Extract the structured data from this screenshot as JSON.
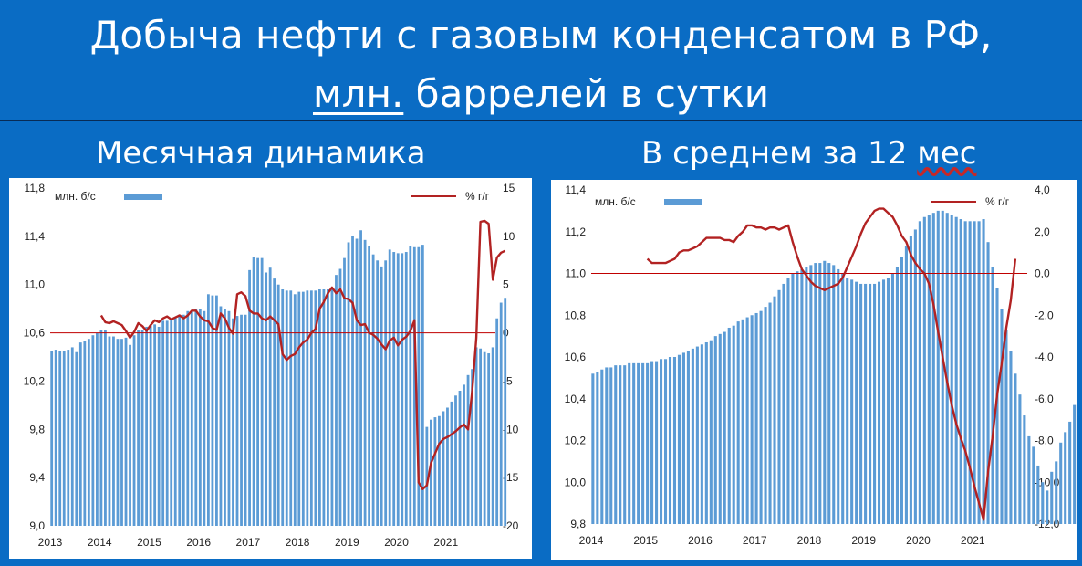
{
  "title": {
    "line1": "Добыча нефти с газовым конденсатом в РФ,",
    "line2_underlined": "млн.",
    "line2_rest": " баррелей в сутки"
  },
  "subtitles": {
    "left": "Месячная динамика",
    "right_prefix": "В среднем за 12 ",
    "right_underlined": "мес"
  },
  "colors": {
    "background": "#0a6cc4",
    "bars": "#5b9bd5",
    "line": "#b22222",
    "zero_line": "#c00000"
  },
  "chart_data": [
    {
      "type": "bar",
      "title": "Месячная динамика",
      "x_ticks": [
        "2013",
        "2014",
        "2015",
        "2016",
        "2017",
        "2018",
        "2019",
        "2020",
        "2021"
      ],
      "x_start": 2013.0,
      "x_step": 0.0833333,
      "ylim": [
        9.0,
        11.8
      ],
      "y_ticks": [
        "9,0",
        "9,4",
        "9,8",
        "10,2",
        "10,6",
        "11,0",
        "11,4",
        "11,8"
      ],
      "y2lim": [
        -20,
        15
      ],
      "y2_ticks": [
        "-20",
        "-15",
        "-10",
        "-5",
        "0",
        "5",
        "10",
        "15"
      ],
      "legend": {
        "bars": "млн. б/с",
        "line": "% г/г"
      },
      "series": [
        {
          "name": "млн. б/с",
          "type": "bar",
          "values": [
            10.45,
            10.46,
            10.45,
            10.45,
            10.46,
            10.48,
            10.44,
            10.52,
            10.53,
            10.55,
            10.58,
            10.6,
            10.62,
            10.62,
            10.57,
            10.57,
            10.55,
            10.55,
            10.56,
            10.5,
            10.58,
            10.62,
            10.62,
            10.65,
            10.66,
            10.67,
            10.65,
            10.7,
            10.7,
            10.71,
            10.73,
            10.75,
            10.75,
            10.78,
            10.78,
            10.8,
            10.8,
            10.78,
            10.92,
            10.91,
            10.91,
            10.82,
            10.8,
            10.78,
            10.72,
            10.74,
            10.75,
            10.75,
            11.12,
            11.23,
            11.22,
            11.22,
            11.1,
            11.14,
            11.05,
            11.0,
            10.96,
            10.95,
            10.95,
            10.92,
            10.94,
            10.94,
            10.95,
            10.95,
            10.95,
            10.96,
            10.96,
            10.96,
            10.97,
            11.08,
            11.13,
            11.22,
            11.35,
            11.4,
            11.38,
            11.45,
            11.37,
            11.32,
            11.25,
            11.2,
            11.15,
            11.2,
            11.29,
            11.27,
            11.26,
            11.26,
            11.27,
            11.32,
            11.31,
            11.31,
            11.33,
            9.82,
            9.88,
            9.9,
            9.91,
            9.95,
            9.98,
            10.03,
            10.08,
            10.12,
            10.17,
            10.25,
            10.3,
            10.48,
            10.47,
            10.44,
            10.43,
            10.48,
            10.72,
            10.85,
            10.89
          ]
        },
        {
          "name": "% г/г",
          "type": "line",
          "axis": "right",
          "values": [
            null,
            null,
            null,
            null,
            null,
            null,
            null,
            null,
            null,
            null,
            null,
            null,
            1.8,
            1.1,
            1.0,
            1.2,
            1.0,
            0.8,
            0.2,
            -0.5,
            0.1,
            1.0,
            0.7,
            0.2,
            0.8,
            1.3,
            1.1,
            1.5,
            1.7,
            1.4,
            1.6,
            1.8,
            1.5,
            1.8,
            2.3,
            2.3,
            1.7,
            1.3,
            1.2,
            0.5,
            0.3,
            2.0,
            1.5,
            0.5,
            -0.1,
            4.0,
            4.2,
            3.8,
            2.3,
            2.0,
            2.0,
            1.5,
            1.3,
            1.7,
            1.3,
            0.9,
            -2.2,
            -2.8,
            -2.4,
            -2.2,
            -1.5,
            -1.0,
            -0.7,
            0.0,
            0.4,
            2.5,
            3.2,
            4.1,
            4.7,
            4.1,
            4.5,
            3.6,
            3.5,
            3.1,
            1.3,
            0.8,
            0.9,
            0.0,
            -0.2,
            -0.6,
            -1.2,
            -1.7,
            -0.8,
            -0.5,
            -1.3,
            -0.7,
            -0.4,
            0.2,
            1.3,
            -15.5,
            -16.2,
            -15.8,
            -13.5,
            -12.5,
            -11.5,
            -11.0,
            -10.8,
            -10.5,
            -10.2,
            -9.8,
            -9.5,
            -10.0,
            -6.0,
            -0.5,
            11.5,
            11.6,
            11.3,
            5.5,
            7.8,
            8.3,
            8.5
          ]
        }
      ]
    },
    {
      "type": "bar",
      "title": "В среднем за 12 мес",
      "x_ticks": [
        "2014",
        "2015",
        "2016",
        "2017",
        "2018",
        "2019",
        "2020",
        "2021"
      ],
      "x_start": 2014.0,
      "x_step": 0.0833333,
      "ylim": [
        9.8,
        11.4
      ],
      "y_ticks": [
        "9,8",
        "10,0",
        "10,2",
        "10,4",
        "10,6",
        "10,8",
        "11,0",
        "11,2",
        "11,4"
      ],
      "y2lim": [
        -12,
        4
      ],
      "y2_ticks": [
        "-12,0",
        "-10,0",
        "-8,0",
        "-6,0",
        "-4,0",
        "-2,0",
        "0,0",
        "2,0",
        "4,0"
      ],
      "legend": {
        "bars": "млн. б/с",
        "line": "% г/г"
      },
      "series": [
        {
          "name": "млн. б/с",
          "type": "bar",
          "values": [
            10.52,
            10.53,
            10.54,
            10.55,
            10.55,
            10.56,
            10.56,
            10.56,
            10.57,
            10.57,
            10.57,
            10.57,
            10.57,
            10.58,
            10.58,
            10.59,
            10.59,
            10.6,
            10.6,
            10.61,
            10.62,
            10.63,
            10.64,
            10.65,
            10.66,
            10.67,
            10.68,
            10.7,
            10.71,
            10.72,
            10.74,
            10.75,
            10.77,
            10.78,
            10.79,
            10.8,
            10.81,
            10.82,
            10.84,
            10.86,
            10.89,
            10.92,
            10.95,
            10.98,
            11.0,
            11.01,
            11.02,
            11.03,
            11.04,
            11.05,
            11.05,
            11.06,
            11.05,
            11.04,
            11.02,
            11.0,
            10.98,
            10.97,
            10.96,
            10.95,
            10.95,
            10.95,
            10.95,
            10.96,
            10.97,
            10.98,
            11.0,
            11.03,
            11.08,
            11.13,
            11.18,
            11.21,
            11.25,
            11.27,
            11.28,
            11.29,
            11.3,
            11.3,
            11.29,
            11.28,
            11.27,
            11.26,
            11.25,
            11.25,
            11.25,
            11.25,
            11.26,
            11.15,
            11.03,
            10.93,
            10.83,
            10.73,
            10.63,
            10.52,
            10.42,
            10.32,
            10.22,
            10.17,
            10.08,
            10.0,
            9.96,
            10.05,
            10.1,
            10.19,
            10.24,
            10.29,
            10.37,
            10.44
          ]
        },
        {
          "name": "% г/г",
          "type": "line",
          "axis": "right",
          "values": [
            null,
            null,
            null,
            null,
            null,
            null,
            null,
            null,
            null,
            null,
            null,
            null,
            0.7,
            0.5,
            0.5,
            0.5,
            0.5,
            0.6,
            0.7,
            1.0,
            1.1,
            1.1,
            1.2,
            1.3,
            1.5,
            1.7,
            1.7,
            1.7,
            1.7,
            1.6,
            1.6,
            1.5,
            1.8,
            2.0,
            2.3,
            2.3,
            2.2,
            2.2,
            2.1,
            2.2,
            2.2,
            2.1,
            2.2,
            2.3,
            1.5,
            0.8,
            0.2,
            -0.1,
            -0.4,
            -0.6,
            -0.7,
            -0.8,
            -0.7,
            -0.6,
            -0.5,
            -0.2,
            0.3,
            0.8,
            1.3,
            1.9,
            2.4,
            2.7,
            3.0,
            3.1,
            3.1,
            2.9,
            2.7,
            2.3,
            1.8,
            1.5,
            0.9,
            0.5,
            0.2,
            0.0,
            -0.5,
            -1.5,
            -2.8,
            -4.0,
            -5.2,
            -6.3,
            -7.2,
            -7.9,
            -8.5,
            -9.3,
            -10.2,
            -11.0,
            -11.8,
            -9.5,
            -7.8,
            -5.8,
            -4.3,
            -2.6,
            -1.3,
            0.7
          ]
        }
      ]
    }
  ]
}
